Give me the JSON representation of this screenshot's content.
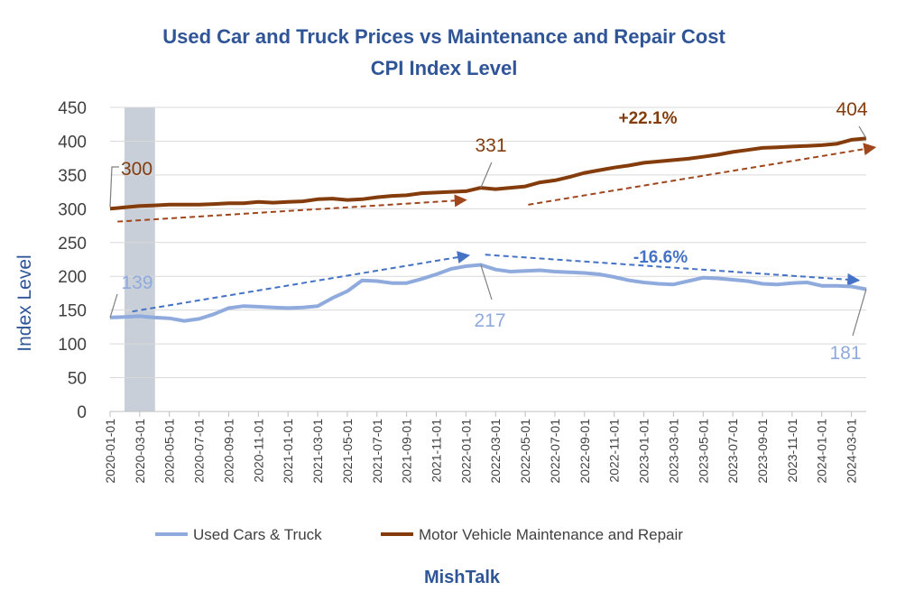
{
  "chart_data": {
    "type": "line",
    "title": "Used Car and Truck Prices vs Maintenance and Repair Cost",
    "subtitle": "CPI Index Level",
    "ylabel": "Index Level",
    "ylim": [
      0,
      450
    ],
    "yticks": [
      0,
      50,
      100,
      150,
      200,
      250,
      300,
      350,
      400,
      450
    ],
    "x_tick_labels": [
      "2020-01-01",
      "2020-03-01",
      "2020-05-01",
      "2020-07-01",
      "2020-09-01",
      "2020-11-01",
      "2021-01-01",
      "2021-03-01",
      "2021-05-01",
      "2021-07-01",
      "2021-09-01",
      "2021-11-01",
      "2022-01-01",
      "2022-03-01",
      "2022-05-01",
      "2022-07-01",
      "2022-09-01",
      "2022-11-01",
      "2023-01-01",
      "2023-03-01",
      "2023-05-01",
      "2023-07-01",
      "2023-09-01",
      "2023-11-01",
      "2024-01-01",
      "2024-03-01"
    ],
    "grid": "horizontal",
    "legend_position": "bottom",
    "shaded_period": [
      "2020-02",
      "2020-04"
    ],
    "x": [
      "2020-01",
      "2020-02",
      "2020-03",
      "2020-04",
      "2020-05",
      "2020-06",
      "2020-07",
      "2020-08",
      "2020-09",
      "2020-10",
      "2020-11",
      "2020-12",
      "2021-01",
      "2021-02",
      "2021-03",
      "2021-04",
      "2021-05",
      "2021-06",
      "2021-07",
      "2021-08",
      "2021-09",
      "2021-10",
      "2021-11",
      "2021-12",
      "2022-01",
      "2022-02",
      "2022-03",
      "2022-04",
      "2022-05",
      "2022-06",
      "2022-07",
      "2022-08",
      "2022-09",
      "2022-10",
      "2022-11",
      "2022-12",
      "2023-01",
      "2023-02",
      "2023-03",
      "2023-04",
      "2023-05",
      "2023-06",
      "2023-07",
      "2023-08",
      "2023-09",
      "2023-10",
      "2023-11",
      "2023-12",
      "2024-01",
      "2024-02",
      "2024-03",
      "2024-04"
    ],
    "series": [
      {
        "name": "Used Cars & Truck",
        "color": "#8FAADC",
        "values": [
          139,
          140,
          141,
          139,
          138,
          134,
          137,
          144,
          153,
          156,
          155,
          154,
          153,
          154,
          156,
          168,
          178,
          194,
          193,
          190,
          190,
          196,
          203,
          211,
          215,
          217,
          210,
          207,
          208,
          209,
          207,
          206,
          205,
          203,
          199,
          194,
          191,
          189,
          188,
          193,
          198,
          197,
          195,
          193,
          189,
          188,
          190,
          191,
          186,
          186,
          185,
          181
        ]
      },
      {
        "name": "Motor Vehicle Maintenance and Repair",
        "color": "#843C0C",
        "values": [
          300,
          302,
          304,
          305,
          306,
          306,
          306,
          307,
          308,
          308,
          310,
          309,
          310,
          311,
          314,
          315,
          313,
          314,
          317,
          319,
          320,
          323,
          324,
          325,
          326,
          331,
          329,
          331,
          333,
          339,
          342,
          347,
          353,
          357,
          361,
          364,
          368,
          370,
          372,
          374,
          377,
          380,
          384,
          387,
          390,
          391,
          392,
          393,
          394,
          396,
          402,
          404
        ]
      }
    ],
    "annotations": {
      "maint_start": "300",
      "maint_mid": "331",
      "maint_end": "404",
      "maint_change": "+22.1%",
      "used_start": "139",
      "used_peak": "217",
      "used_end": "181",
      "used_change": "-16.6%"
    },
    "footer": "MishTalk"
  }
}
